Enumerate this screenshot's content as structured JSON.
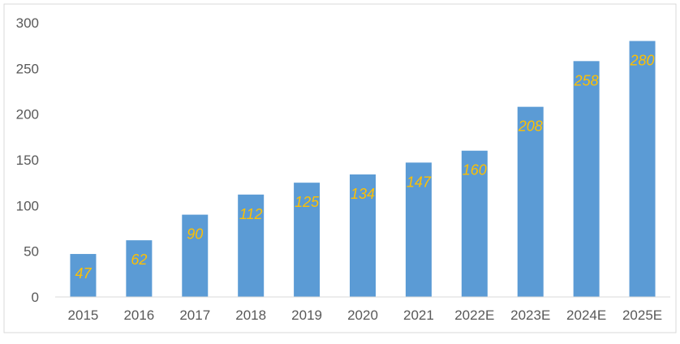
{
  "chart_data": {
    "type": "bar",
    "title": "",
    "xlabel": "",
    "ylabel": "",
    "categories": [
      "2015",
      "2016",
      "2017",
      "2018",
      "2019",
      "2020",
      "2021",
      "2022E",
      "2023E",
      "2024E",
      "2025E"
    ],
    "values": [
      47,
      62,
      90,
      112,
      125,
      134,
      147,
      160,
      208,
      258,
      280
    ],
    "ylim": [
      0,
      300
    ],
    "yticks": [
      "0",
      "50",
      "100",
      "150",
      "200",
      "250",
      "300"
    ],
    "grid": false,
    "legend": "none",
    "bar_color": "#5B9BD5",
    "label_color": "#FFC000",
    "axis_text_color": "#595959"
  }
}
